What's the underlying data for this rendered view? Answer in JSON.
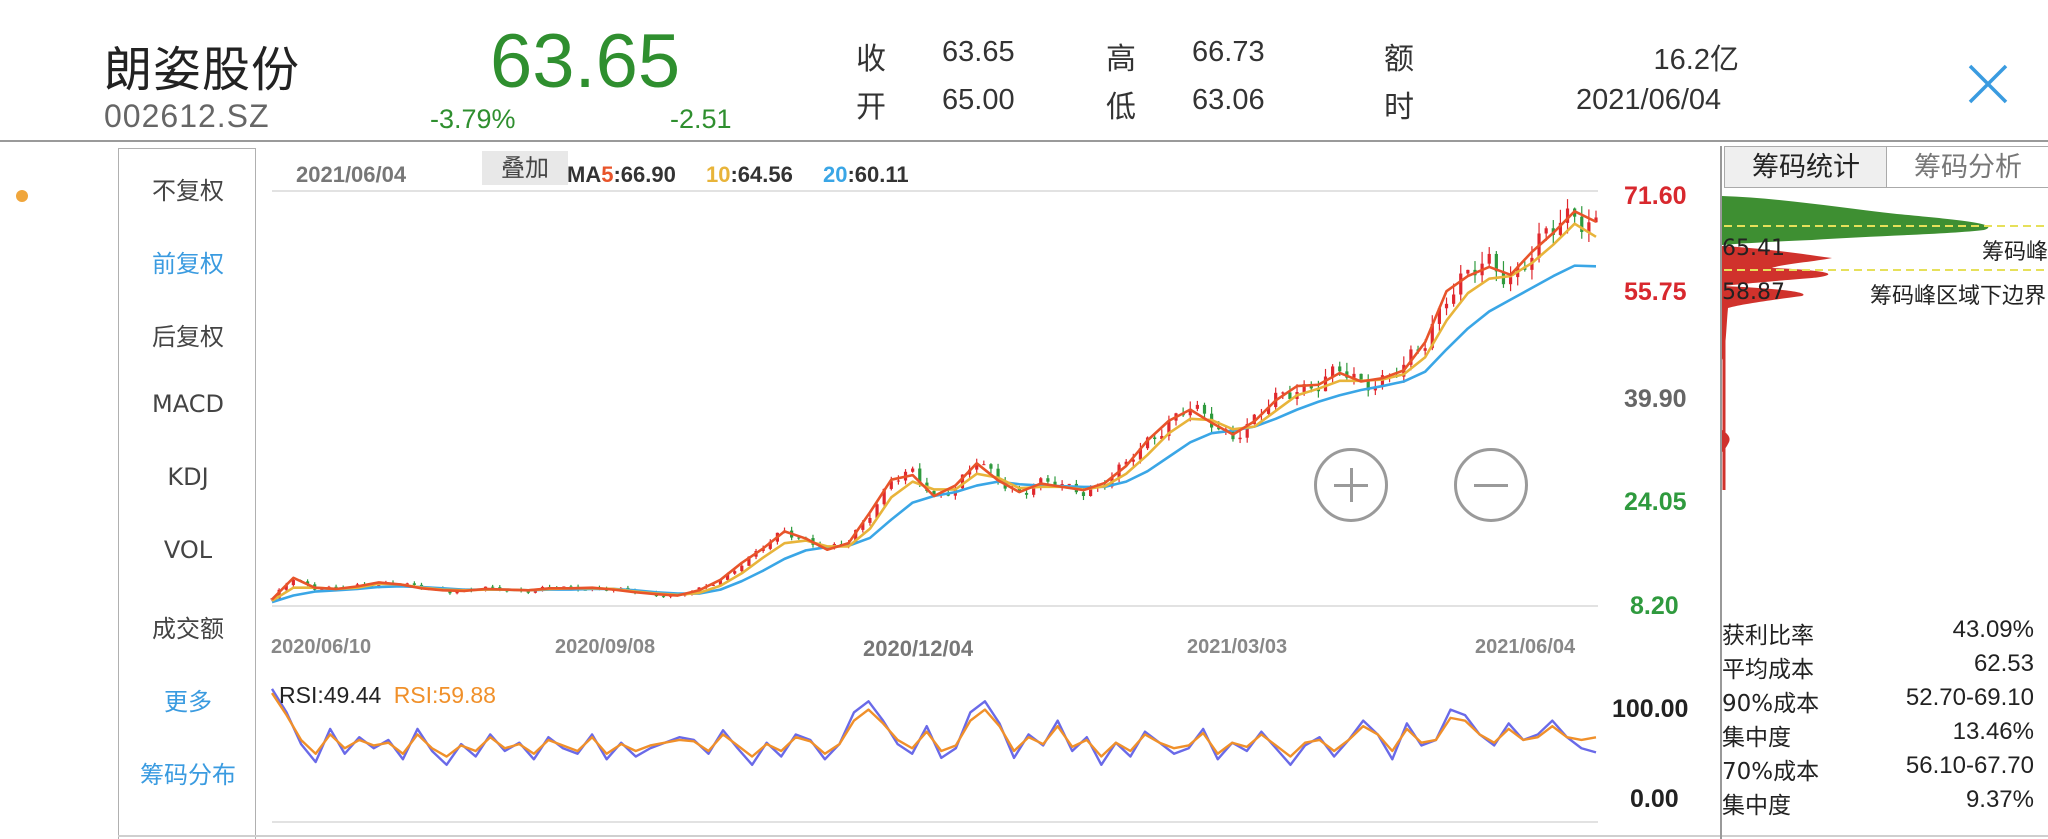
{
  "header": {
    "name": "朗姿股份",
    "code": "002612.SZ",
    "price": "63.65",
    "change_pct": "-3.79%",
    "change_abs": "-2.51",
    "quotes": [
      {
        "label": "收",
        "value": "63.65"
      },
      {
        "label": "开",
        "value": "65.00"
      },
      {
        "label": "高",
        "value": "66.73"
      },
      {
        "label": "低",
        "value": "63.06"
      },
      {
        "label": "额",
        "value": "16.2亿"
      },
      {
        "label": "时",
        "value": "2021/06/04"
      }
    ]
  },
  "menu": {
    "items": [
      "不复权",
      "前复权",
      "后复权",
      "MACD",
      "KDJ",
      "VOL",
      "成交额",
      "更多",
      "筹码分布"
    ]
  },
  "toolbar": {
    "date": "2021/06/04",
    "overlay_label": "叠加"
  },
  "ma_legend": {
    "ma5_prefix": "MA",
    "ma5_n": "5",
    "ma5_val": ":66.90",
    "ma10_n": "10",
    "ma10_val": ":64.56",
    "ma20_n": "20",
    "ma20_val": ":60.11"
  },
  "rsi_legend": {
    "rsi1": "RSI:49.44",
    "rsi2": "RSI:59.88"
  },
  "chip_panel": {
    "tabs": [
      "筹码统计",
      "筹码分析"
    ],
    "peak_label": "筹码峰",
    "lower_label": "筹码峰区域下边界",
    "peak_price": "65.41",
    "lower_price": "58.87",
    "stats": [
      {
        "label": "获利比率",
        "value": "43.09%"
      },
      {
        "label": "平均成本",
        "value": "62.53"
      },
      {
        "label": "90%成本",
        "value": "52.70-69.10"
      },
      {
        "label": "集中度",
        "value": "13.46%"
      },
      {
        "label": "70%成本",
        "value": "56.10-67.70"
      },
      {
        "label": "集中度",
        "value": "9.37%"
      }
    ]
  },
  "colors": {
    "up": "#e0282e",
    "down": "#2f9a3e",
    "ma5": "#e8542a",
    "ma10": "#e8b43a",
    "ma20": "#3aa6e6",
    "rsi1": "#6a6ae8",
    "rsi2": "#f0902a"
  },
  "chart_data": [
    {
      "type": "candlestick",
      "ylim": [
        8.2,
        71.6
      ],
      "y_ticks": [
        "71.60",
        "55.75",
        "39.90",
        "24.05",
        "8.20"
      ],
      "x_ticks": [
        "2020/06/10",
        "2020/09/08",
        "2020/12/04",
        "2021/03/03",
        "2021/06/04"
      ],
      "series": [
        {
          "name": "MA5",
          "values": [
            9.2,
            12.5,
            11.0,
            10.8,
            11.2,
            11.8,
            11.5,
            10.9,
            10.6,
            10.5,
            10.8,
            10.7,
            10.6,
            10.9,
            10.9,
            11.0,
            10.7,
            10.3,
            10.0,
            9.8,
            10.6,
            12.2,
            14.8,
            17.0,
            19.6,
            18.5,
            16.8,
            17.8,
            22.5,
            27.5,
            28.2,
            25.0,
            26.6,
            30.0,
            27.4,
            25.6,
            26.9,
            26.4,
            25.9,
            27.0,
            29.6,
            33.5,
            36.5,
            38.2,
            36.2,
            34.4,
            36.4,
            39.6,
            41.8,
            42.0,
            43.8,
            42.5,
            43.0,
            44.2,
            48.5,
            56.3,
            58.6,
            60.0,
            58.8,
            62.3,
            65.2,
            68.5,
            66.9
          ]
        },
        {
          "name": "MA10",
          "values": [
            9.0,
            11.0,
            11.0,
            10.8,
            11.0,
            11.6,
            11.5,
            11.0,
            10.7,
            10.6,
            10.7,
            10.7,
            10.6,
            10.8,
            10.9,
            10.9,
            10.8,
            10.4,
            10.1,
            9.9,
            10.2,
            11.3,
            13.2,
            15.6,
            17.8,
            18.2,
            17.3,
            17.3,
            20.0,
            24.8,
            27.2,
            26.0,
            26.0,
            28.4,
            27.8,
            26.2,
            26.4,
            26.4,
            26.0,
            26.5,
            28.4,
            31.3,
            34.6,
            36.8,
            36.6,
            35.2,
            35.6,
            38.0,
            40.4,
            41.4,
            42.6,
            42.6,
            42.8,
            43.6,
            46.2,
            51.8,
            56.0,
            58.2,
            58.6,
            60.6,
            63.4,
            66.6,
            64.6
          ]
        },
        {
          "name": "MA20",
          "values": [
            8.8,
            9.8,
            10.4,
            10.6,
            10.8,
            11.1,
            11.2,
            11.1,
            10.9,
            10.7,
            10.7,
            10.7,
            10.6,
            10.7,
            10.7,
            10.8,
            10.8,
            10.6,
            10.3,
            10.1,
            10.1,
            10.7,
            12.0,
            13.6,
            15.4,
            16.7,
            17.2,
            17.4,
            18.6,
            21.4,
            24.0,
            25.0,
            25.6,
            26.6,
            27.2,
            26.8,
            26.6,
            26.5,
            26.4,
            26.4,
            27.2,
            28.8,
            31.0,
            33.2,
            34.6,
            35.0,
            35.6,
            36.8,
            38.2,
            39.4,
            40.4,
            41.2,
            41.8,
            42.5,
            44.0,
            47.4,
            50.6,
            53.2,
            55.0,
            56.8,
            58.6,
            60.2,
            60.1
          ]
        }
      ]
    },
    {
      "type": "line",
      "ylim": [
        0,
        100
      ],
      "y_ticks": [
        "100.00",
        "0.00"
      ],
      "series": [
        {
          "name": "RSI",
          "values": [
            95,
            78,
            55,
            42,
            66,
            48,
            60,
            52,
            58,
            44,
            66,
            50,
            40,
            55,
            46,
            62,
            50,
            56,
            44,
            60,
            52,
            48,
            62,
            44,
            56,
            46,
            52,
            56,
            60,
            58,
            48,
            65,
            52,
            40,
            56,
            46,
            62,
            58,
            44,
            55,
            78,
            86,
            72,
            55,
            48,
            68,
            45,
            52,
            78,
            86,
            70,
            45,
            62,
            54,
            72,
            50,
            60,
            40,
            56,
            46,
            64,
            56,
            48,
            52,
            66,
            44,
            56,
            50,
            64,
            52,
            40,
            54,
            60,
            46,
            58,
            72,
            62,
            44,
            70,
            54,
            58,
            80,
            76,
            62,
            54,
            70,
            58,
            62,
            72,
            60,
            52,
            49
          ]
        },
        {
          "name": "RSI",
          "values": [
            92,
            76,
            58,
            48,
            62,
            52,
            58,
            54,
            56,
            48,
            62,
            52,
            46,
            54,
            50,
            60,
            52,
            55,
            48,
            58,
            54,
            50,
            60,
            48,
            55,
            50,
            54,
            56,
            58,
            57,
            50,
            62,
            54,
            46,
            55,
            50,
            60,
            57,
            48,
            55,
            72,
            80,
            70,
            58,
            52,
            64,
            50,
            54,
            72,
            80,
            68,
            50,
            60,
            55,
            68,
            53,
            58,
            46,
            56,
            50,
            62,
            56,
            52,
            54,
            63,
            48,
            56,
            53,
            62,
            54,
            46,
            56,
            58,
            50,
            58,
            68,
            62,
            50,
            66,
            56,
            58,
            74,
            72,
            62,
            56,
            66,
            58,
            60,
            68,
            60,
            58,
            59.88
          ]
        }
      ]
    }
  ]
}
